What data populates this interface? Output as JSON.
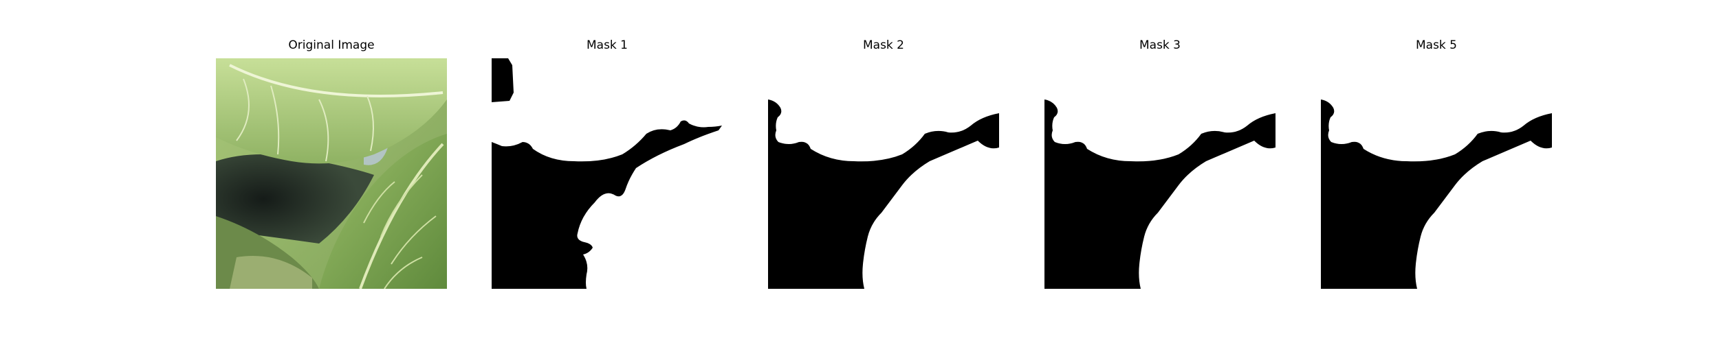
{
  "figure": {
    "panels": [
      {
        "title": "Original Image",
        "kind": "photo"
      },
      {
        "title": "Mask 1",
        "kind": "mask"
      },
      {
        "title": "Mask 2",
        "kind": "mask"
      },
      {
        "title": "Mask 3",
        "kind": "mask"
      },
      {
        "title": "Mask 5",
        "kind": "mask"
      }
    ]
  },
  "colors": {
    "mask_foreground": "#000000",
    "mask_background": "#ffffff",
    "leaf_light": "#bcd68a",
    "leaf_mid": "#8eb25e",
    "leaf_dark": "#4f7a35",
    "shadow": "#1e2622",
    "vein": "#e6f0c8"
  }
}
